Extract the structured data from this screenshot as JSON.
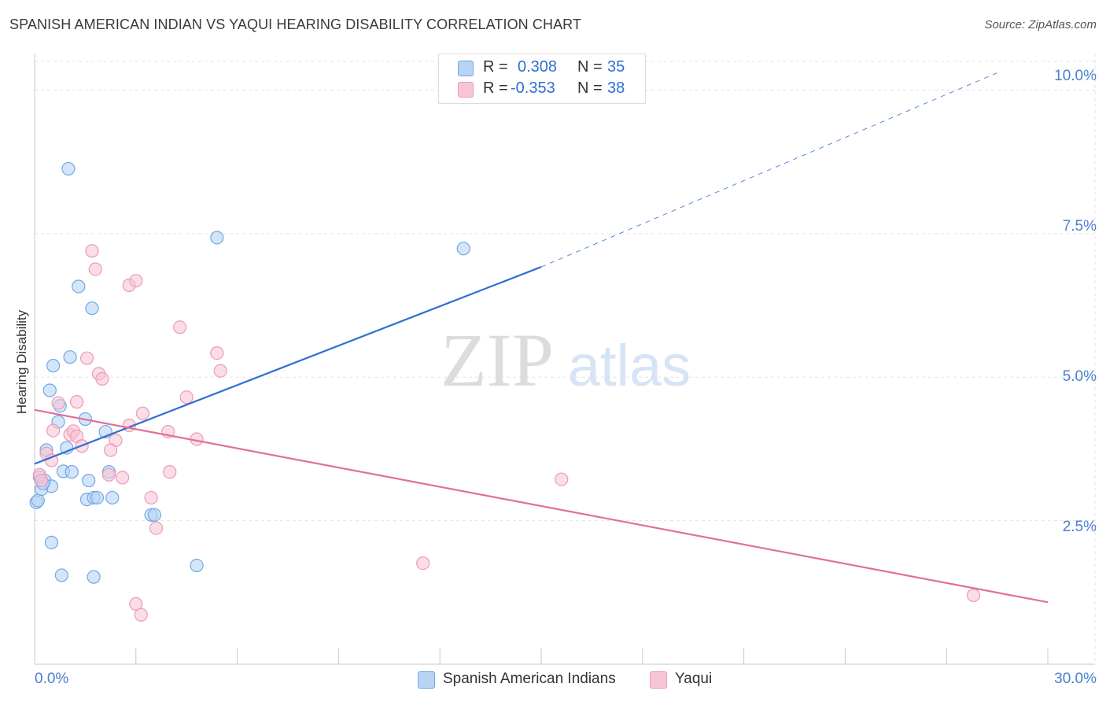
{
  "chart_data": {
    "type": "scatter",
    "title": "SPANISH AMERICAN INDIAN VS YAQUI HEARING DISABILITY CORRELATION CHART",
    "source": "Source: ZipAtlas.com",
    "ylabel": "Hearing Disability",
    "xlabel": "",
    "xlim": [
      0,
      30
    ],
    "ylim": [
      0,
      10.5
    ],
    "x_tick_labels": [
      "0.0%",
      "30.0%"
    ],
    "y_ticks": [
      2.5,
      5.0,
      7.5,
      10.0
    ],
    "y_tick_labels": [
      "2.5%",
      "5.0%",
      "7.5%",
      "10.0%"
    ],
    "watermark": {
      "left": "ZIP",
      "right": "atlas"
    },
    "stats": [
      {
        "r_label": "R =",
        "r_value": "0.308",
        "n_label": "N =",
        "n_value": "35"
      },
      {
        "r_label": "R =",
        "r_value": "-0.353",
        "n_label": "N =",
        "n_value": "38"
      }
    ],
    "series": [
      {
        "name": "Spanish American Indians",
        "color": "#6fa8e8",
        "fill": "#b9d3f3",
        "line_color": "#2f6fd0",
        "trend": {
          "x0": 0,
          "y0": 3.49,
          "x1": 15,
          "y1": 6.92,
          "dash_to_x": 28.5,
          "dash_to_y": 10.3
        },
        "points": [
          [
            1.0,
            8.63
          ],
          [
            5.4,
            7.43
          ],
          [
            12.7,
            7.24
          ],
          [
            1.3,
            6.58
          ],
          [
            1.7,
            6.2
          ],
          [
            1.05,
            5.35
          ],
          [
            0.55,
            5.2
          ],
          [
            0.45,
            4.77
          ],
          [
            0.75,
            4.5
          ],
          [
            0.7,
            4.22
          ],
          [
            1.5,
            4.27
          ],
          [
            2.1,
            4.05
          ],
          [
            0.35,
            3.73
          ],
          [
            0.95,
            3.77
          ],
          [
            0.85,
            3.36
          ],
          [
            1.1,
            3.35
          ],
          [
            2.2,
            3.35
          ],
          [
            0.15,
            3.26
          ],
          [
            0.3,
            3.2
          ],
          [
            0.5,
            3.1
          ],
          [
            1.6,
            3.2
          ],
          [
            0.05,
            2.82
          ],
          [
            1.55,
            2.87
          ],
          [
            1.75,
            2.9
          ],
          [
            1.85,
            2.9
          ],
          [
            2.3,
            2.9
          ],
          [
            3.45,
            2.6
          ],
          [
            3.55,
            2.6
          ],
          [
            0.5,
            2.12
          ],
          [
            0.8,
            1.55
          ],
          [
            1.75,
            1.52
          ],
          [
            4.8,
            1.72
          ],
          [
            0.1,
            2.85
          ],
          [
            0.2,
            3.05
          ],
          [
            0.25,
            3.15
          ]
        ]
      },
      {
        "name": "Yaqui",
        "color": "#ee9ab5",
        "fill": "#f7c6d5",
        "line_color": "#e07098",
        "trend": {
          "x0": 0,
          "y0": 4.43,
          "x1": 30,
          "y1": 1.08
        },
        "points": [
          [
            1.7,
            7.2
          ],
          [
            1.8,
            6.88
          ],
          [
            2.8,
            6.6
          ],
          [
            3.0,
            6.68
          ],
          [
            4.3,
            5.87
          ],
          [
            5.4,
            5.42
          ],
          [
            5.5,
            5.11
          ],
          [
            1.55,
            5.33
          ],
          [
            1.9,
            5.06
          ],
          [
            2.0,
            4.97
          ],
          [
            0.7,
            4.55
          ],
          [
            1.25,
            4.57
          ],
          [
            4.5,
            4.65
          ],
          [
            3.2,
            4.37
          ],
          [
            2.8,
            4.16
          ],
          [
            0.55,
            4.07
          ],
          [
            1.05,
            4.0
          ],
          [
            1.15,
            4.06
          ],
          [
            3.95,
            4.05
          ],
          [
            1.25,
            3.97
          ],
          [
            4.8,
            3.92
          ],
          [
            2.4,
            3.9
          ],
          [
            1.4,
            3.8
          ],
          [
            2.25,
            3.73
          ],
          [
            0.35,
            3.67
          ],
          [
            0.5,
            3.55
          ],
          [
            2.2,
            3.3
          ],
          [
            2.6,
            3.25
          ],
          [
            4.0,
            3.35
          ],
          [
            0.15,
            3.3
          ],
          [
            0.2,
            3.2
          ],
          [
            15.6,
            3.22
          ],
          [
            3.45,
            2.9
          ],
          [
            3.6,
            2.37
          ],
          [
            11.5,
            1.76
          ],
          [
            3.0,
            1.05
          ],
          [
            3.15,
            0.86
          ],
          [
            27.8,
            1.2
          ]
        ]
      }
    ]
  }
}
